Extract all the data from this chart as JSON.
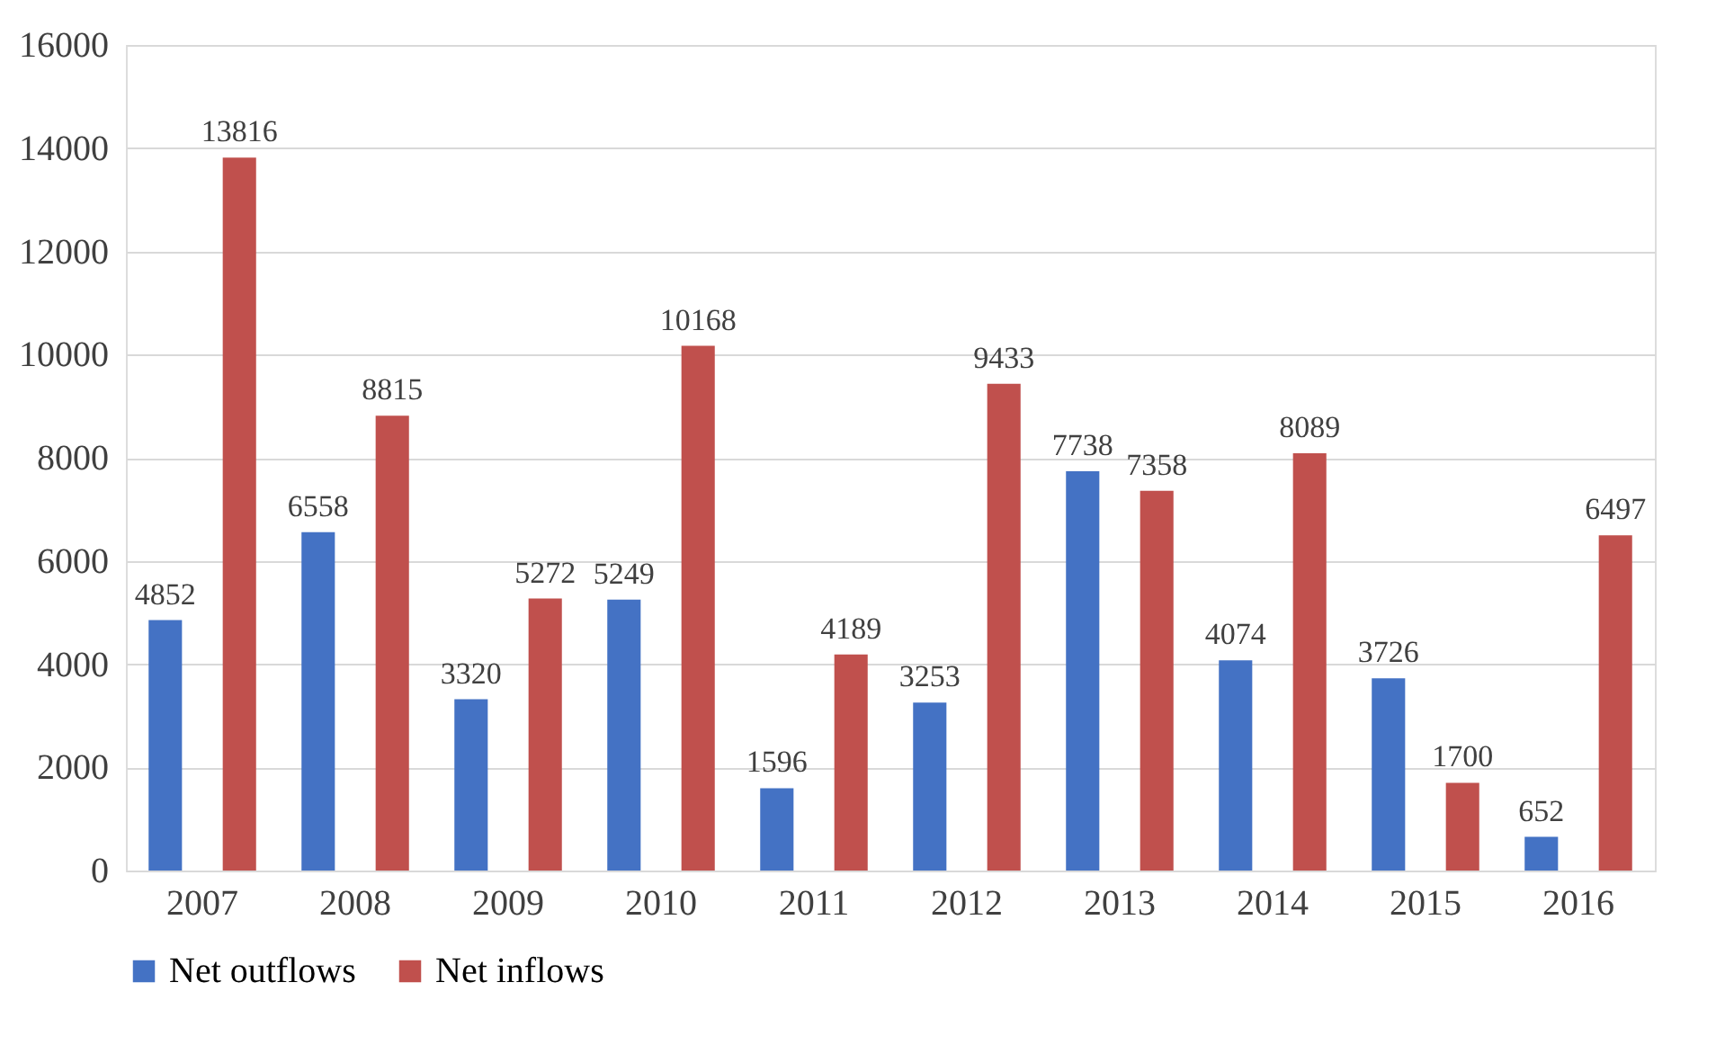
{
  "chart_data": {
    "type": "bar",
    "categories": [
      "2007",
      "2008",
      "2009",
      "2010",
      "2011",
      "2012",
      "2013",
      "2014",
      "2015",
      "2016"
    ],
    "series": [
      {
        "name": "Net outflows",
        "color": "#4472c4",
        "values": [
          4852,
          6558,
          3320,
          5249,
          1596,
          3253,
          7738,
          4074,
          3726,
          652
        ]
      },
      {
        "name": "Net inflows",
        "color": "#c0504d",
        "values": [
          13816,
          8815,
          5272,
          10168,
          4189,
          9433,
          7358,
          8089,
          1700,
          6497
        ]
      }
    ],
    "ylim": [
      0,
      16000
    ],
    "yticks": [
      0,
      2000,
      4000,
      6000,
      8000,
      10000,
      12000,
      14000,
      16000
    ],
    "grid": "y",
    "legend": "bottom",
    "data_labels": true
  }
}
